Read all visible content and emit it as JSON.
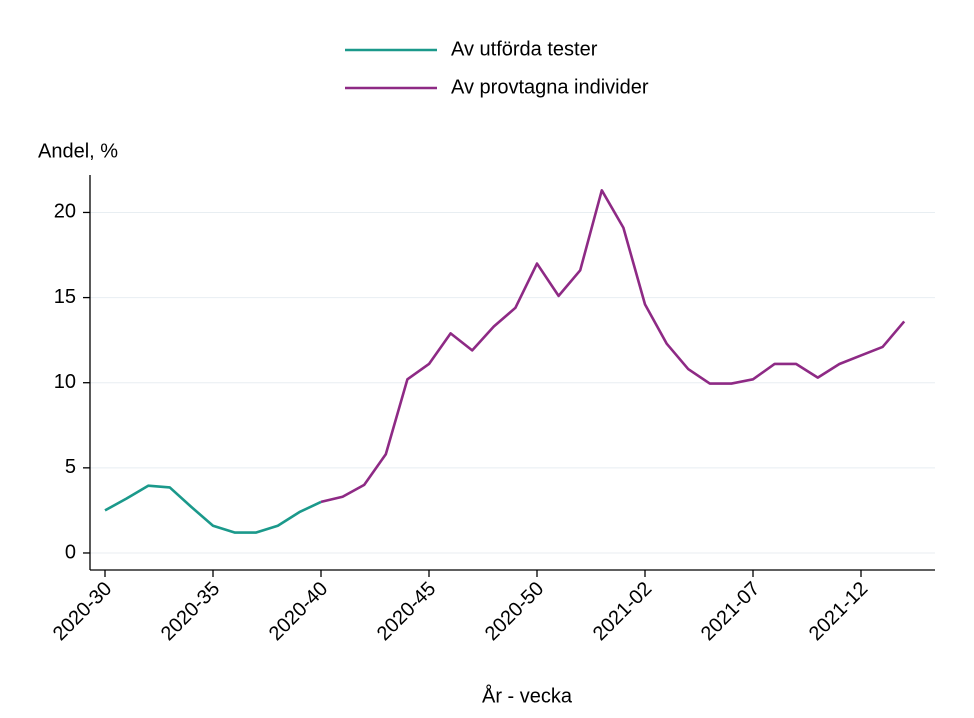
{
  "chart_data": {
    "type": "line",
    "y_label": "Andel, %",
    "x_label": "År - vecka",
    "categories": [
      "2020-30",
      null,
      null,
      null,
      null,
      "2020-35",
      null,
      null,
      null,
      null,
      "2020-40",
      null,
      null,
      null,
      null,
      "2020-45",
      null,
      null,
      null,
      null,
      "2020-50",
      null,
      null,
      null,
      null,
      "2021-02",
      null,
      null,
      null,
      null,
      "2021-07",
      null,
      null,
      null,
      null,
      "2021-12",
      null,
      null
    ],
    "series": [
      {
        "name": "Av utförda tester",
        "color": "#1b998b",
        "values": [
          2.5,
          3.2,
          3.95,
          3.85,
          2.7,
          1.6,
          1.2,
          1.2,
          1.6,
          2.4,
          3.0,
          null,
          null,
          null,
          null,
          null,
          null,
          null,
          null,
          null,
          null,
          null,
          null,
          null,
          null,
          null,
          null,
          null,
          null,
          null,
          null,
          null,
          null,
          null,
          null,
          null,
          null,
          null
        ]
      },
      {
        "name": "Av provtagna individer",
        "color": "#8e2a85",
        "values": [
          null,
          null,
          null,
          null,
          null,
          null,
          null,
          null,
          null,
          null,
          3.0,
          3.3,
          4.0,
          5.8,
          10.2,
          11.1,
          12.9,
          11.9,
          13.3,
          14.4,
          17.0,
          15.1,
          16.6,
          21.3,
          19.1,
          14.6,
          12.3,
          10.8,
          9.95,
          9.95,
          10.2,
          11.1,
          11.1,
          10.3,
          11.1,
          11.6,
          12.1,
          13.6
        ]
      }
    ],
    "ylim": [
      -1,
      22.2
    ],
    "yticks": [
      0,
      5,
      10,
      15,
      20
    ],
    "grid": true
  }
}
